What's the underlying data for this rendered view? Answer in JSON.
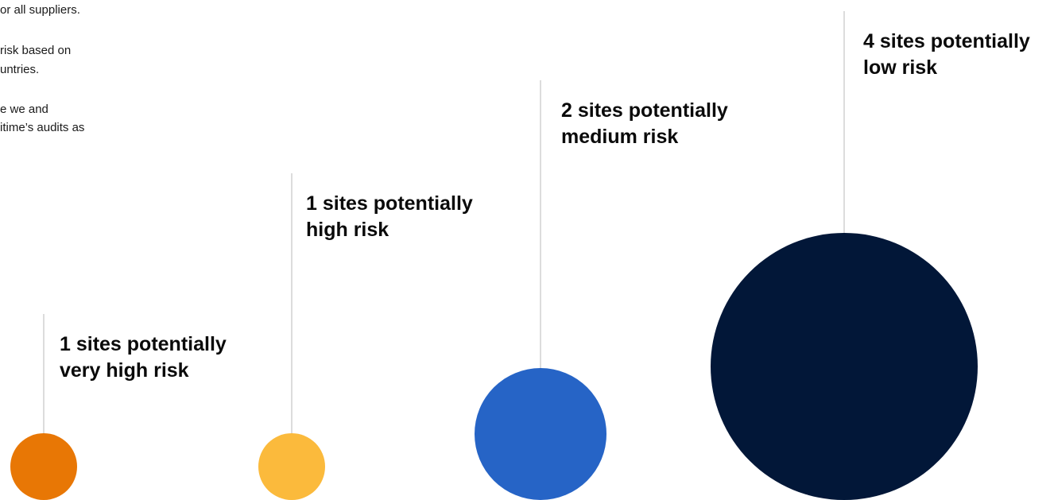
{
  "intro_text": {
    "lines": [
      "or all suppliers.",
      "risk based on",
      "untries.",
      "e we and",
      "itime’s audits as"
    ]
  },
  "chart_data": {
    "type": "bubble",
    "unit": "sites",
    "series": [
      {
        "value": 1,
        "label_line1": "1 sites potentially",
        "label_line2": "very high risk",
        "color": "#E87705"
      },
      {
        "value": 1,
        "label_line1": "1 sites potentially",
        "label_line2": "high risk",
        "color": "#FBBA3C"
      },
      {
        "value": 2,
        "label_line1": "2 sites potentially",
        "label_line2": "medium risk",
        "color": "#2664C6"
      },
      {
        "value": 4,
        "label_line1": "4 sites potentially",
        "label_line2": "low risk",
        "color": "#021738"
      }
    ]
  }
}
